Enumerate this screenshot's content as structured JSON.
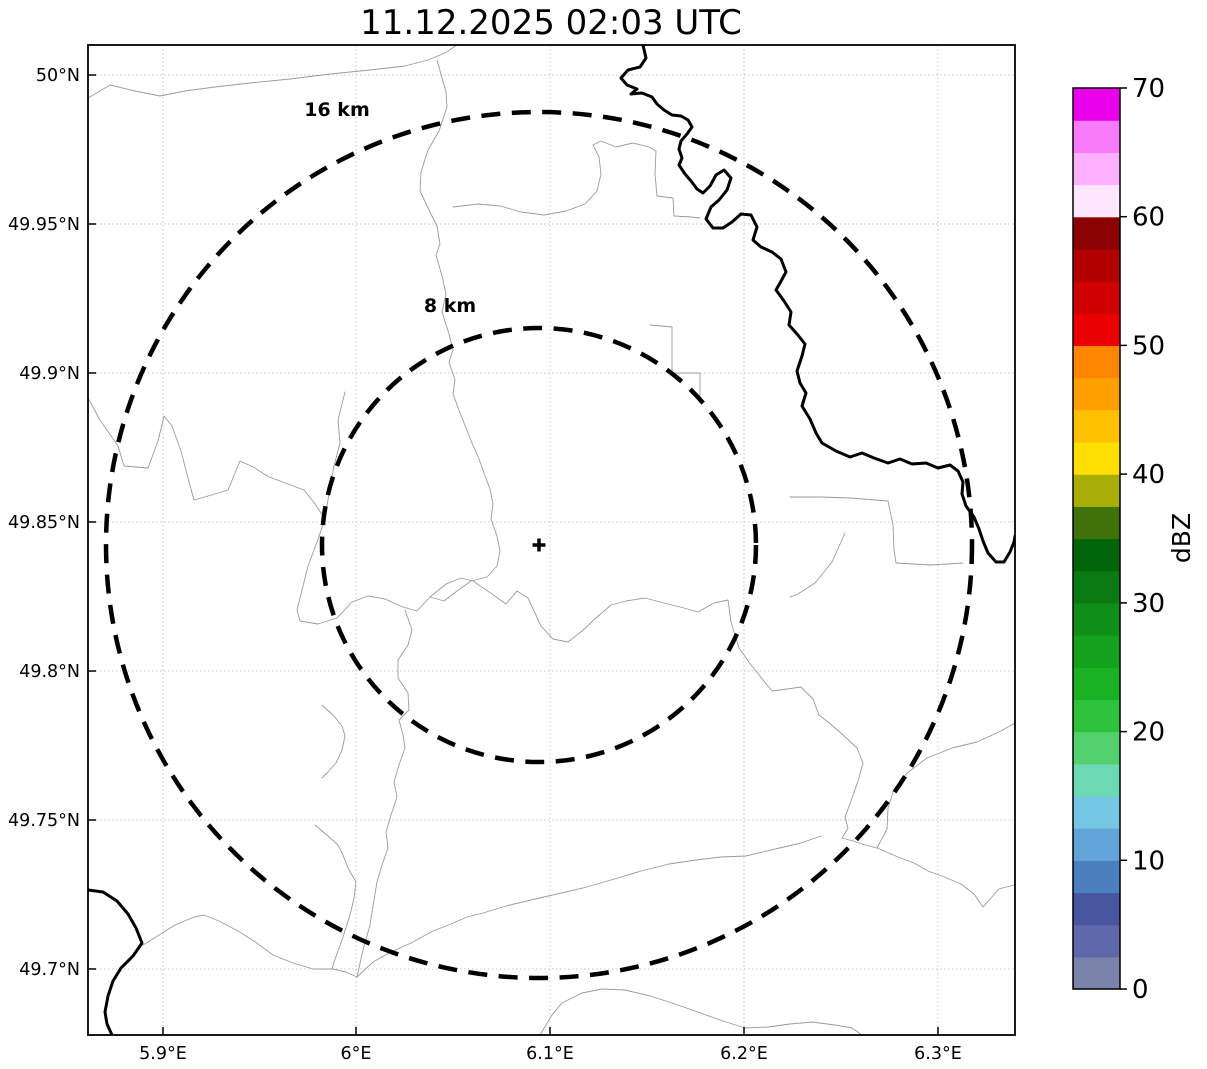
{
  "title": "11.12.2025 02:03 UTC",
  "map": {
    "x_ticks": [
      {
        "label": "5.9°E"
      },
      {
        "label": "6°E"
      },
      {
        "label": "6.1°E"
      },
      {
        "label": "6.2°E"
      },
      {
        "label": "6.3°E"
      }
    ],
    "y_ticks": [
      {
        "label": "50°N"
      },
      {
        "label": "49.95°N"
      },
      {
        "label": "49.9°N"
      },
      {
        "label": "49.85°N"
      },
      {
        "label": "49.8°N"
      },
      {
        "label": "49.75°N"
      },
      {
        "label": "49.7°N"
      }
    ],
    "range_rings": [
      {
        "label": "16 km"
      },
      {
        "label": "8 km"
      }
    ]
  },
  "colorbar": {
    "label": "dBZ",
    "ticks": [
      "70",
      "60",
      "50",
      "40",
      "30",
      "20",
      "10",
      "0"
    ],
    "min": 0,
    "max": 70,
    "band_step_dbz": 2.5,
    "band_colors_bottom_to_top": [
      "#7b83ab",
      "#5f68a9",
      "#47569e",
      "#4a7fc0",
      "#62a4d8",
      "#74c6e4",
      "#6cd8b4",
      "#52d06c",
      "#2ec23c",
      "#18b224",
      "#12a01d",
      "#0f8f18",
      "#0a7a12",
      "#00640a",
      "#3f7208",
      "#a8ae06",
      "#ffe000",
      "#ffc000",
      "#ffa000",
      "#ff8700",
      "#ea0000",
      "#d00000",
      "#b00000",
      "#8b0000",
      "#ffe6ff",
      "#ffb0ff",
      "#f97af9",
      "#ea00ea"
    ]
  },
  "chart_data": {
    "type": "heatmap",
    "title": "11.12.2025 02:03 UTC",
    "description": "Weather-radar reflectivity map (PPI) on a lon/lat grid with 8 km and 16 km range rings around the radar site (marked with +). No reflectivity echoes are visible at this timestamp (empty field).",
    "x_tick_labels": [
      "5.9°E",
      "6°E",
      "6.1°E",
      "6.2°E",
      "6.3°E"
    ],
    "y_tick_labels": [
      "50°N",
      "49.95°N",
      "49.9°N",
      "49.85°N",
      "49.8°N",
      "49.75°N",
      "49.7°N"
    ],
    "xlim_deg_e": [
      5.86,
      6.34
    ],
    "ylim_deg_n": [
      49.68,
      50.01
    ],
    "grid": true,
    "radar_center": {
      "lon_deg_e": 6.09,
      "lat_deg_n": 49.84
    },
    "range_rings_km": [
      8,
      16
    ],
    "values": [],
    "colorbar": {
      "label": "dBZ",
      "min": 0,
      "max": 70,
      "tick_step": 10,
      "band_step_dbz": 2.5,
      "orientation": "vertical",
      "position": "right"
    }
  }
}
